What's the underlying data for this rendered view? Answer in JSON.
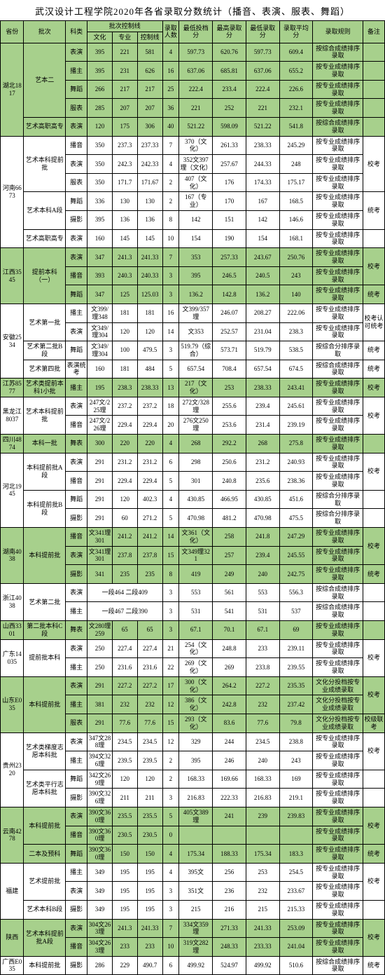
{
  "title": "武汉设计工程学院2020年各省录取分数统计（播音、表演、服表、舞蹈）",
  "header": {
    "province": "省份",
    "batch": "批次",
    "kind": "科类",
    "ctrl_group": "批次控制线",
    "ctrl_culture": "文化",
    "ctrl_major": "专业",
    "ctrl_line": "控制线",
    "count": "录取人数",
    "lowest": "最低投档分",
    "highest_score": "最高录取分",
    "lowest_score": "最低录取分",
    "avg_score": "录取平均分",
    "rule": "录取规则",
    "note": "备注"
  },
  "rows": [
    {
      "prov": "湖北1817",
      "batch": "艺本二",
      "rows": 4,
      "g": true,
      "k": "表演",
      "c1": "395",
      "c2": "221",
      "c3": "581",
      "n": "4",
      "lo": "597.73",
      "hi": "620.76",
      "los": "597.73",
      "avg": "609.4",
      "rule": "按综合成绩排序录取",
      "note": ""
    },
    {
      "g": true,
      "k": "播主",
      "c1": "395",
      "c2": "231",
      "c3": "626",
      "n": "16",
      "lo": "637.06",
      "hi": "685.81",
      "los": "637.06",
      "avg": "655.2",
      "rule": "按专业成绩排序录取",
      "note": ""
    },
    {
      "g": true,
      "k": "舞蹈",
      "c1": "266",
      "c2": "217",
      "c3": "217",
      "n": "25",
      "lo": "222.4",
      "hi": "233.4",
      "los": "222.4",
      "avg": "226.6",
      "rule": "按专业成绩排序录取",
      "note": ""
    },
    {
      "g": true,
      "k": "服表",
      "c1": "285",
      "c2": "207",
      "c3": "207",
      "n": "36",
      "lo": "221",
      "hi": "252",
      "los": "221",
      "avg": "232.1",
      "rule": "按专业成绩排序录取",
      "note": ""
    },
    {
      "batch": "艺术高职高专",
      "rows": 1,
      "g": true,
      "k": "表演",
      "c1": "120",
      "c2": "175",
      "c3": "306",
      "n": "40",
      "lo": "521.22",
      "hi": "598.09",
      "los": "521.22",
      "avg": "541.8",
      "rule": "按综合成绩排序录取",
      "note": ""
    },
    {
      "prov": "河南6673",
      "batch": "艺术本科提前批",
      "rows": 3,
      "g": false,
      "k": "播音",
      "c1": "350",
      "c2": "237.3",
      "c3": "237.33",
      "n": "7",
      "lo": "370（文化）",
      "hi": "261.33",
      "los": "238.33",
      "avg": "245.29",
      "rule": "按专业成绩排序录取",
      "note": "校考",
      "noterows": 3
    },
    {
      "g": false,
      "k": "表演",
      "c1": "350",
      "c2": "242.3",
      "c3": "242.33",
      "n": "4",
      "lo": "352文397理（文化）",
      "hi": "257.67",
      "los": "244.33",
      "avg": "248",
      "rule": "按专业成绩排序录取"
    },
    {
      "g": false,
      "k": "服表",
      "c1": "350",
      "c2": "171.7",
      "c3": "171.67",
      "n": "2",
      "lo": "407（文化）",
      "hi": "176",
      "los": "174.33",
      "avg": "175.17",
      "rule": "按专业成绩排序录取"
    },
    {
      "batch": "艺术本科A段",
      "rows": 2,
      "g": false,
      "k": "舞蹈",
      "c1": "336",
      "c2": "130",
      "c3": "130",
      "n": "2",
      "lo": "167（专业）",
      "hi": "170",
      "los": "167",
      "avg": "168.5",
      "rule": "按专业成绩排序录取",
      "note": "统考",
      "noterows": 2
    },
    {
      "g": false,
      "k": "摄影",
      "c1": "395",
      "c2": "136",
      "c3": "136",
      "n": "8",
      "lo": "142",
      "hi": "151",
      "los": "142",
      "avg": "146.6",
      "rule": "按专业成绩排序录取"
    },
    {
      "batch": "艺术高职高专",
      "rows": 1,
      "g": false,
      "k": "表演",
      "c1": "160",
      "c2": "145",
      "c3": "145",
      "n": "10",
      "lo": "154",
      "hi": "190",
      "los": "154",
      "avg": "168.1",
      "rule": "按专业成绩排序录取",
      "note": ""
    },
    {
      "prov": "江西3545",
      "batch": "提前本科（一）",
      "rows": 3,
      "g": true,
      "k": "表演",
      "c1": "347",
      "c2": "241.3",
      "c3": "241.33",
      "n": "7",
      "lo": "353",
      "hi": "257.33",
      "los": "243.67",
      "avg": "250.76",
      "rule": "按专业成绩排序录取",
      "note": "校考",
      "noterows": 2
    },
    {
      "g": true,
      "k": "播音",
      "c1": "393",
      "c2": "240.3",
      "c3": "240.33",
      "n": "3",
      "lo": "395",
      "hi": "246.5",
      "los": "240.5",
      "avg": "243",
      "rule": "按专业成绩排序录取"
    },
    {
      "g": true,
      "k": "舞蹈",
      "c1": "347",
      "c2": "125",
      "c3": "125.03",
      "n": "3",
      "lo": "136.2",
      "hi": "142.8",
      "los": "136.2",
      "avg": "140",
      "rule": "按专业成绩排序录取",
      "note": "统考"
    },
    {
      "prov": "安徽2534",
      "batch": "艺术第一批",
      "rows": 2,
      "g": false,
      "k": "播主",
      "c1": "文399/理348",
      "c2": "181",
      "c3": "181",
      "n": "16",
      "lo": "文399/357理",
      "hi": "246.07",
      "los": "208.27",
      "avg": "222.06",
      "rule": "按专业成绩排序录取",
      "note": "校考认可统考",
      "noterows": 2
    },
    {
      "g": false,
      "k": "表演",
      "c1": "文349/理304",
      "c2": "120",
      "c3": "120",
      "n": "14",
      "lo": "文353",
      "hi": "252.57",
      "los": "231.04",
      "avg": "238.3",
      "rule": "按专业成绩排序录取"
    },
    {
      "batch": "艺术第二批B段",
      "rows": 1,
      "g": false,
      "k": "舞蹈",
      "c1": "文349/理304",
      "c2": "100",
      "c3": "479.5",
      "n": "3",
      "lo": "519.79（综合）",
      "hi": "573.71",
      "los": "519.79",
      "avg": "538.5",
      "rule": "按综合分排序录取",
      "note": "统考"
    },
    {
      "batch": "艺术第四批",
      "rows": 1,
      "g": false,
      "k": "表演统考",
      "c1": "160",
      "c2": "181",
      "c3": "484",
      "n": "5",
      "lo": "657.54",
      "hi": "708.4",
      "los": "657.54",
      "avg": "674.5",
      "rule": "按综合成绩排序录取",
      "note": "统考"
    },
    {
      "prov": "江苏8577",
      "batch": "艺术类提前本科1小批",
      "rows": 1,
      "g": true,
      "k": "播主",
      "c1": "195",
      "c2": "238.3",
      "c3": "238.33",
      "n": "13",
      "lo": "217（文化）",
      "hi": "253",
      "los": "238.33",
      "avg": "243.41",
      "rule": "按专业成绩排序录取",
      "note": "校考"
    },
    {
      "prov": "黑龙江8037",
      "batch": "艺术本科提前批",
      "rows": 2,
      "g": false,
      "k": "表演",
      "c1": "247文/225理",
      "c2": "237.2",
      "c3": "237.2",
      "n": "18",
      "lo": "272文/328理",
      "hi": "255.6",
      "los": "239.4",
      "avg": "245.61",
      "rule": "按专业成绩排序录取",
      "note": "校考",
      "noterows": 2
    },
    {
      "g": false,
      "k": "播音",
      "c1": "247文/226理",
      "c2": "229.4",
      "c3": "229.4",
      "n": "20",
      "lo": "276文250理",
      "hi": "253.6",
      "los": "231.4",
      "avg": "239.19",
      "rule": "按专业成绩排序录取"
    },
    {
      "prov": "四川4874",
      "batch": "本科一批",
      "rows": 1,
      "g": true,
      "k": "舞表",
      "c1": "300",
      "c2": "220",
      "c3": "220",
      "n": "4",
      "lo": "268",
      "hi": "292.2",
      "los": "268",
      "avg": "275.8",
      "rule": "按专业成绩排序录取",
      "note": ""
    },
    {
      "prov": "河北1945",
      "batch": "本科提前批A段",
      "rows": 2,
      "g": false,
      "k": "表演",
      "c1": "291",
      "c2": "231.2",
      "c3": "231.2",
      "n": "6",
      "lo": "298",
      "hi": "250.6",
      "los": "231.2",
      "avg": "240.93",
      "rule": "按专业成绩排序录取",
      "note": "校考",
      "noterows": 2
    },
    {
      "g": false,
      "k": "播音",
      "c1": "291",
      "c2": "229.4",
      "c3": "229.4",
      "n": "5",
      "lo": "301",
      "hi": "240.8",
      "los": "235.6",
      "avg": "238.36",
      "rule": "按专业成绩排序录取"
    },
    {
      "batch": "本科提前批B段",
      "rows": 2,
      "g": false,
      "k": "舞蹈",
      "c1": "291",
      "c2": "120",
      "c3": "402.3",
      "n": "4",
      "lo": "430.85",
      "hi": "466.95",
      "los": "430.85",
      "avg": "451.6",
      "rule": "按综合分排序录取",
      "note": ""
    },
    {
      "g": false,
      "k": "摄影",
      "c1": "291",
      "c2": "60",
      "c3": "271.2",
      "n": "5",
      "lo": "470.98",
      "hi": "481.2",
      "los": "470.98",
      "avg": "475.5",
      "rule": "按综合分排序录取",
      "note": ""
    },
    {
      "prov": "湖南4038",
      "batch": "本科提前批",
      "rows": 3,
      "g": true,
      "k": "播音",
      "c1": "文341理301",
      "c2": "241.2",
      "c3": "241.2",
      "n": "14",
      "lo": "文361（文化）",
      "hi": "258",
      "los": "241.8",
      "avg": "247.29",
      "rule": "按专业成绩排序录取",
      "note": "校考",
      "noterows": 2
    },
    {
      "g": true,
      "k": "表演",
      "c1": "文341理301",
      "c2": "237.8",
      "c3": "237.8",
      "n": "15",
      "lo": "文349理321",
      "hi": "257",
      "los": "239.4",
      "avg": "245.55",
      "rule": "按专业成绩排序录取"
    },
    {
      "g": true,
      "k": "摄影",
      "c1": "341",
      "c2": "235",
      "c3": "235",
      "n": "8",
      "lo": "419",
      "hi": "249",
      "los": "240",
      "avg": "242.75",
      "rule": "按专业成绩排序录取",
      "note": "统考"
    },
    {
      "prov": "浙江4038",
      "batch": "艺术第二批",
      "rows": 2,
      "g": false,
      "k": "表演",
      "c1span": "一段464  二段409",
      "n": "3",
      "lo": "553",
      "hi": "561",
      "los": "553",
      "avg": "556.3",
      "rule": "按综合成绩排序录取",
      "note": ""
    },
    {
      "g": false,
      "k": "播主",
      "c1span": "一段467  二段390",
      "n": "3",
      "lo": "531",
      "hi": "541",
      "los": "531",
      "avg": "537",
      "rule": "按综合成绩排序录取",
      "note": ""
    },
    {
      "prov": "山西3301",
      "batch": "第二批本科C段",
      "rows": 1,
      "g": true,
      "k": "舞表",
      "c1": "文280理259",
      "c2": "65",
      "c3": "65",
      "n": "3",
      "lo": "67.1",
      "hi": "70.1",
      "los": "67.1",
      "avg": "69",
      "rule": "按专业成绩排序录取",
      "note": ""
    },
    {
      "prov": "广东14035",
      "batch": "提前批本科",
      "rows": 2,
      "g": false,
      "k": "表演",
      "c1": "250",
      "c2": "227.4",
      "c3": "227.4",
      "n": "21",
      "lo": "254（文化）",
      "hi": "248.8",
      "los": "233",
      "avg": "239.11",
      "rule": "按专业成绩排序录取",
      "note": "校考",
      "noterows": 2
    },
    {
      "g": false,
      "k": "播主",
      "c1": "250",
      "c2": "231.6",
      "c3": "231.6",
      "n": "22",
      "lo": "269（文化）",
      "hi": "269",
      "los": "233.8",
      "avg": "239.55",
      "rule": "按专业成绩排序录取"
    },
    {
      "prov": "山东E035",
      "batch": "本科提前批",
      "rows": 3,
      "g": true,
      "k": "表演",
      "c1": "291",
      "c2": "227.2",
      "c3": "227.2",
      "n": "17",
      "lo": "300（文化）",
      "hi": "264.2",
      "los": "227.2",
      "avg": "235.35",
      "rule": "文化分投档按专业成绩录取",
      "note": "校考",
      "noterows": 2
    },
    {
      "g": true,
      "k": "播主",
      "c1": "381",
      "c2": "232",
      "c3": "232",
      "n": "12",
      "lo": "386（文化）",
      "hi": "242.8",
      "los": "232",
      "avg": "237.42",
      "rule": "文化分投档按专业成绩录取"
    },
    {
      "g": true,
      "k": "服表",
      "c1": "291",
      "c2": "77.6",
      "c3": "77.6",
      "n": "15",
      "lo": "293（文化）",
      "hi": "83.6",
      "los": "77.6",
      "avg": "79.8",
      "rule": "文化分投档按专业成绩录取",
      "note": "校级联考"
    },
    {
      "prov": "贵州2320",
      "batch": "艺术类梯度志愿本科批",
      "rows": 2,
      "g": false,
      "k": "表演",
      "c1": "347文288理",
      "c2": "234.5",
      "c3": "234.5",
      "n": "12",
      "lo": "329",
      "hi": "244",
      "los": "234.5",
      "avg": "238.8",
      "rule": "按专业成绩排序录取",
      "note": "校考",
      "noterows": 2
    },
    {
      "g": false,
      "k": "播主",
      "c1": "394文326理",
      "c2": "239.5",
      "c3": "239.5",
      "n": "2",
      "lo": "395",
      "hi": "246",
      "los": "240",
      "avg": "243",
      "rule": "按专业成绩排序录取"
    },
    {
      "batch": "艺术类平行志愿本科批",
      "rows": 2,
      "g": false,
      "k": "舞蹈",
      "c1": "342文269理",
      "c2": "120",
      "c3": "120",
      "n": "2",
      "lo": "168.33",
      "hi": "169.66",
      "los": "168.33",
      "avg": "169",
      "rule": "按专业成绩排序录取",
      "note": ""
    },
    {
      "g": false,
      "k": "摄影",
      "c1": "390文326理",
      "c2": "211",
      "c3": "211",
      "n": "3",
      "lo": "216.83",
      "hi": "222.33",
      "los": "216.83",
      "avg": "219.1",
      "rule": "按专业成绩排序录取",
      "note": ""
    },
    {
      "prov": "云南4278",
      "batch": "本科提前批",
      "rows": 2,
      "g": true,
      "k": "表演",
      "c1": "390文360理",
      "c2": "235.5",
      "c3": "235.5",
      "n": "5",
      "lo": "405文389理",
      "hi": "241",
      "los": "239",
      "avg": "239.83",
      "rule": "按专业成绩排序录取",
      "note": "校考",
      "noterows": 2
    },
    {
      "g": true,
      "k": "播音",
      "c1": "390文360理",
      "c2": "230.5",
      "c3": "230.5",
      "n": "0",
      "lo": "",
      "hi": "",
      "los": "",
      "avg": "",
      "rule": "按专业成绩排序录取"
    },
    {
      "batch": "二本及预科",
      "rows": 1,
      "g": true,
      "k": "舞蹈",
      "c1": "390文360理",
      "c2": "150",
      "c3": "150",
      "n": "4",
      "lo": "175.34",
      "hi": "188.33",
      "los": "175.34",
      "avg": "183.3",
      "rule": "按专业成绩排序录取",
      "note": "统考"
    },
    {
      "prov": "福建",
      "batch": "艺术提前批",
      "rows": 2,
      "g": false,
      "k": "播主",
      "c1": "349",
      "c2": "195",
      "c3": "195",
      "n": "4",
      "lo": "395文",
      "hi": "256",
      "los": "253",
      "avg": "254.5",
      "rule": "按专业成绩排序录取",
      "note": "校考",
      "noterows": 2
    },
    {
      "g": false,
      "k": "表演",
      "c1": "349",
      "c2": "195",
      "c3": "195",
      "n": "3",
      "lo": "351文",
      "hi": "236",
      "los": "232",
      "avg": "233.67",
      "rule": "按专业成绩排序录取"
    },
    {
      "batch": "艺术本科B段",
      "rows": 1,
      "g": false,
      "k": "摄影",
      "c1": "349",
      "c2": "195",
      "c3": "195",
      "n": "3",
      "lo": "215",
      "hi": "216",
      "los": "215",
      "avg": "215.33",
      "rule": "按专业成绩排序录取",
      "note": ""
    },
    {
      "prov": "陕西",
      "batch": "艺术本科提前批A段",
      "rows": 2,
      "g": true,
      "k": "表演",
      "c1": "304文263理",
      "c2": "241.3",
      "c3": "241.33",
      "n": "7",
      "lo": "334文359理",
      "hi": "271.33",
      "los": "241.33",
      "avg": "253.09",
      "rule": "按专业成绩排序录取",
      "note": "校考",
      "noterows": 2
    },
    {
      "g": true,
      "k": "播音",
      "c1": "304文263理",
      "c2": "233",
      "c3": "233",
      "n": "10",
      "lo": "319文282理",
      "hi": "248.33",
      "los": "233.33",
      "avg": "241.04",
      "rule": "按专业成绩排序录取"
    },
    {
      "prov": "广西E035",
      "batch": "本科提前批",
      "rows": 1,
      "g": false,
      "k": "摄影",
      "c1": "286",
      "c2": "229",
      "c3": "490.7",
      "n": "6",
      "lo": "499.92",
      "hi": "524.97",
      "los": "499.92",
      "avg": "510.6",
      "rule": "按综合成绩排序录取",
      "note": "统考"
    }
  ]
}
